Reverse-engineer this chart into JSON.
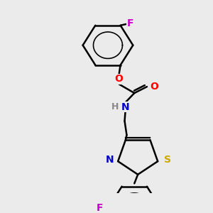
{
  "background_color": "#ebebeb",
  "line_color": "#000000",
  "bond_width": 1.8,
  "atom_colors": {
    "F": "#cc00cc",
    "O": "#ff0000",
    "N": "#0000cc",
    "S": "#ccaa00",
    "H": "#888888",
    "C": "#000000"
  }
}
